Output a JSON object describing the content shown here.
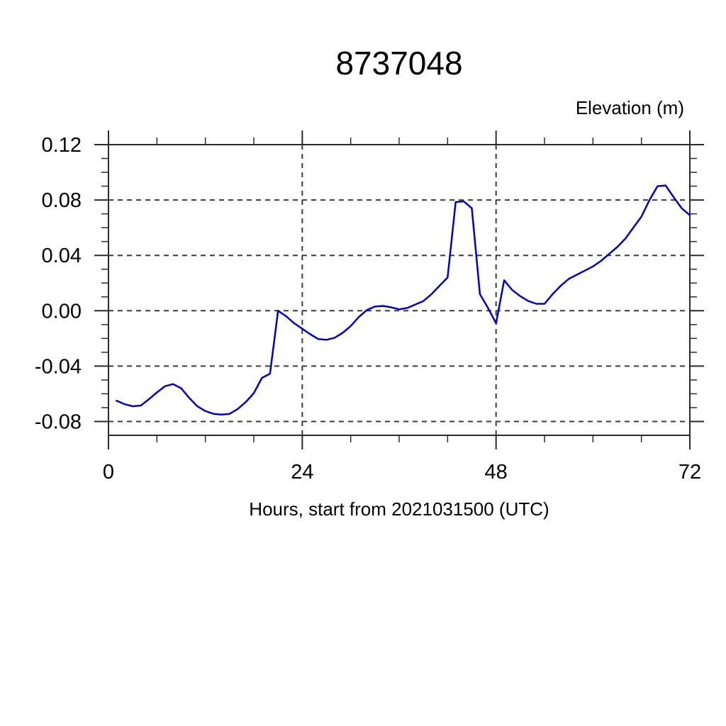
{
  "chart_data": {
    "type": "line",
    "title": "8737048",
    "ylabel": "Elevation (m)",
    "xlabel": "Hours, start from 2021031500 (UTC)",
    "xlim": [
      0,
      72
    ],
    "ylim": [
      -0.09,
      0.12
    ],
    "x_ticks_major": [
      0,
      24,
      48,
      72
    ],
    "x_tick_labels": [
      "0",
      "24",
      "48",
      "72"
    ],
    "x_minor_step": 6,
    "y_ticks_major": [
      -0.08,
      -0.04,
      0.0,
      0.04,
      0.08,
      0.12
    ],
    "y_tick_labels": [
      "-0.08",
      "-0.04",
      "0.00",
      "0.04",
      "0.08",
      "0.12"
    ],
    "y_minor_step": 0.01,
    "grid": "dashed-at-major-ticks",
    "grid_vertical_at": [
      24,
      48
    ],
    "legend": "none",
    "line_color": "#0000cc",
    "frame_color": "#2b2b2b",
    "grid_color": "#3c3c3c",
    "text_color": "#000000",
    "background_color": "#ffffff",
    "series": [
      {
        "name": "elevation",
        "x": [
          1,
          2,
          3,
          4,
          5,
          6,
          7,
          8,
          9,
          10,
          11,
          12,
          13,
          14,
          15,
          16,
          17,
          18,
          19,
          20,
          21,
          22,
          23,
          24,
          25,
          26,
          27,
          28,
          29,
          30,
          31,
          32,
          33,
          34,
          35,
          36,
          37,
          38,
          39,
          40,
          41,
          42,
          43,
          44,
          45,
          46,
          47,
          48,
          49,
          50,
          51,
          52,
          53,
          54,
          55,
          56,
          57,
          58,
          59,
          60,
          61,
          62,
          63,
          64,
          65,
          66,
          67,
          68,
          69,
          70,
          71,
          72
        ],
        "y": [
          -0.065,
          -0.0675,
          -0.069,
          -0.0685,
          -0.064,
          -0.059,
          -0.0545,
          -0.053,
          -0.056,
          -0.063,
          -0.069,
          -0.0725,
          -0.0745,
          -0.075,
          -0.0745,
          -0.071,
          -0.066,
          -0.0595,
          -0.0485,
          -0.0455,
          0.0,
          -0.004,
          -0.009,
          -0.013,
          -0.017,
          -0.0205,
          -0.021,
          -0.0195,
          -0.016,
          -0.011,
          -0.0045,
          0.0005,
          0.003,
          0.0035,
          0.0025,
          0.001,
          0.002,
          0.0045,
          0.007,
          0.012,
          0.018,
          0.024,
          0.0785,
          0.079,
          0.074,
          0.012,
          0.002,
          -0.009,
          0.022,
          0.015,
          0.0105,
          0.007,
          0.005,
          0.005,
          0.012,
          0.018,
          0.023,
          0.026,
          0.029,
          0.032,
          0.036,
          0.041,
          0.046,
          0.052,
          0.06,
          0.068,
          0.08,
          0.09,
          0.0905,
          0.082,
          0.074,
          0.069
        ]
      }
    ]
  }
}
